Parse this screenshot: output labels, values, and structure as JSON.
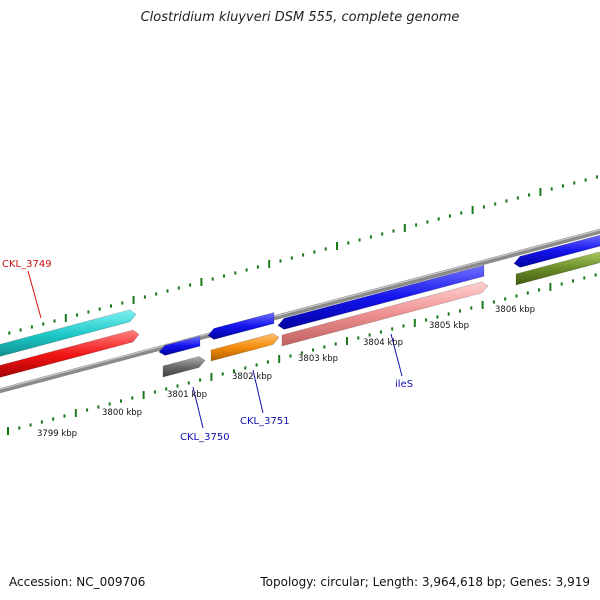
{
  "title": "Clostridium kluyveri DSM 555, complete genome",
  "footer": {
    "accession": "Accession: NC_009706",
    "stats": "Topology: circular; Length: 3,964,618 bp; Genes: 3,919"
  },
  "colors": {
    "backbone": "#8a8a8a",
    "ticks": "#1a7a1a",
    "cyan": "#1ec8c8",
    "red": "#f01414",
    "blue": "#1414ee",
    "gray": "#6a6a6a",
    "orange": "#f58c0a",
    "pink": "#ee9090",
    "olive": "#6a8c28",
    "label_red": "#d01010",
    "label_blue": "#1010b0"
  },
  "scale_labels": [
    "3799 kbp",
    "3800 kbp",
    "3801 kbp",
    "3802 kbp",
    "3803 kbp",
    "3804 kbp",
    "3805 kbp",
    "3806 kbp"
  ],
  "gene_labels": [
    "CKL_3749",
    "CKL_3750",
    "CKL_3751",
    "ileS"
  ]
}
